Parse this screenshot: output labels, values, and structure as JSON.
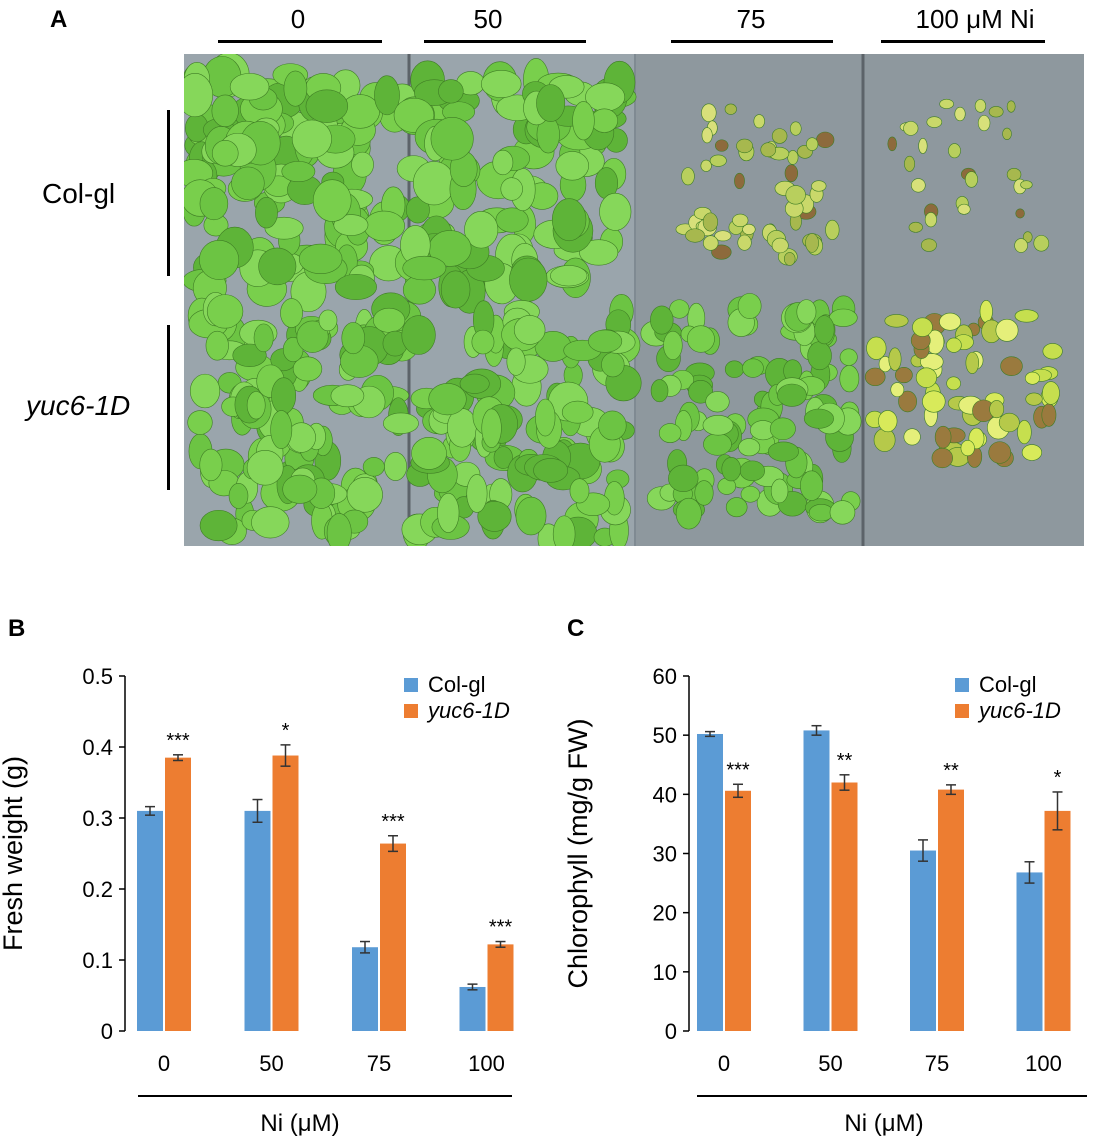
{
  "panelA": {
    "letter": "A",
    "concentrations": [
      "0",
      "50",
      "75",
      "100 μM Ni"
    ],
    "genotypes": [
      "Col-gl",
      "yuc6-1D"
    ]
  },
  "colors": {
    "col_gl": "#5b9bd5",
    "yuc6": "#ed7d31",
    "plate_bg": "#8c98a0",
    "leaf": "#6cc443"
  },
  "chart_data": [
    {
      "panel": "B",
      "type": "bar",
      "categories": [
        "0",
        "50",
        "75",
        "100"
      ],
      "xlabel": "Ni (μM)",
      "ylabel": "Fresh weight (g)",
      "ylim": [
        0,
        0.5
      ],
      "yticks": [
        "0",
        "0.1",
        "0.2",
        "0.3",
        "0.4",
        "0.5"
      ],
      "legend_position": "top-right",
      "series": [
        {
          "name": "Col-gl",
          "values": [
            0.31,
            0.31,
            0.118,
            0.062
          ],
          "errors": [
            0.006,
            0.016,
            0.008,
            0.004
          ]
        },
        {
          "name": "yuc6-1D",
          "values": [
            0.385,
            0.388,
            0.264,
            0.122
          ],
          "errors": [
            0.004,
            0.015,
            0.011,
            0.004
          ]
        }
      ],
      "significance": [
        "***",
        "*",
        "***",
        "***"
      ]
    },
    {
      "panel": "C",
      "type": "bar",
      "categories": [
        "0",
        "50",
        "75",
        "100"
      ],
      "xlabel": "Ni (μM)",
      "ylabel": "Chlorophyll (mg/g FW)",
      "ylim": [
        0,
        60
      ],
      "yticks": [
        "0",
        "10",
        "20",
        "30",
        "40",
        "50",
        "60"
      ],
      "legend_position": "top-right",
      "series": [
        {
          "name": "Col-gl",
          "values": [
            50.2,
            50.8,
            30.5,
            26.8
          ],
          "errors": [
            0.4,
            0.8,
            1.8,
            1.8
          ]
        },
        {
          "name": "yuc6-1D",
          "values": [
            40.6,
            42.0,
            40.8,
            37.2
          ],
          "errors": [
            1.1,
            1.3,
            0.8,
            3.2
          ]
        }
      ],
      "significance": [
        "***",
        "**",
        "**",
        "*"
      ]
    }
  ]
}
